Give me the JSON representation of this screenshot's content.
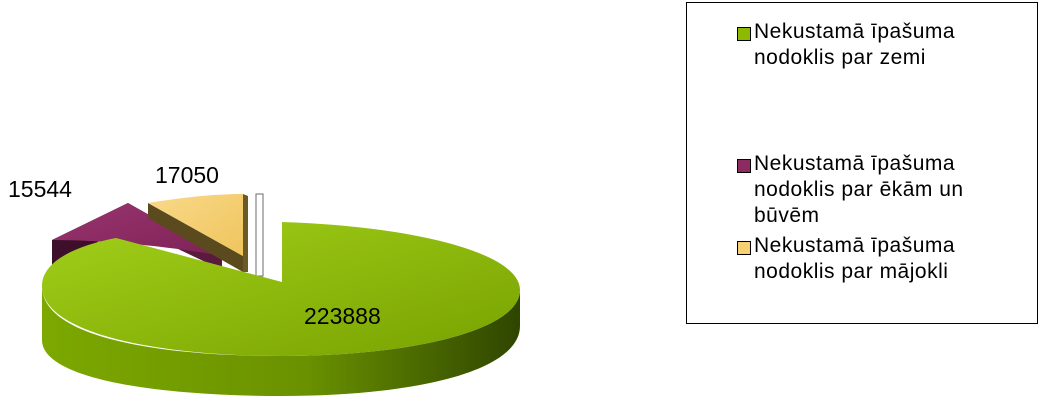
{
  "chart_data": {
    "type": "pie",
    "three_d": true,
    "slices": [
      {
        "label": "Nekustamā īpašuma\nnodoklis par zemi",
        "value": 223888,
        "value_label": "223888",
        "color": "#8DB900",
        "exploded": false
      },
      {
        "label": "Nekustamā īpašuma\nnodoklis par ēkām un\nbūvēm",
        "value": 15544,
        "value_label": "15544",
        "color": "#8C2A62",
        "exploded": true
      },
      {
        "label": "Nekustamā īpašuma\nnodoklis par mājokli",
        "value": 17050,
        "value_label": "17050",
        "color": "#F7D074",
        "exploded": true
      }
    ],
    "legend_position": "right"
  }
}
